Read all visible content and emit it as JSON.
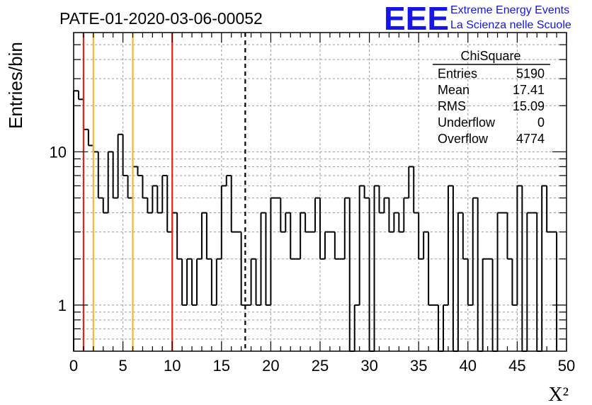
{
  "title": "PATE-01-2020-03-06-00052",
  "logo": {
    "mark": "EEE",
    "line1": "Extreme Energy Events",
    "line2": "La Scienza nelle Scuole",
    "color": "#1515e8"
  },
  "stats": {
    "header": "ChiSquare",
    "rows": [
      {
        "label": "Entries",
        "value": "5190"
      },
      {
        "label": "Mean",
        "value": "17.41"
      },
      {
        "label": "RMS",
        "value": "15.09"
      },
      {
        "label": "Underflow",
        "value": "0"
      },
      {
        "label": "Overflow",
        "value": "4774"
      }
    ]
  },
  "chart_data": {
    "type": "bar",
    "histogram": true,
    "ylog": true,
    "grid": true,
    "xlabel": "X²",
    "ylabel": "Entries/bin",
    "xlim": [
      0,
      50
    ],
    "ylim": [
      0.5,
      60
    ],
    "bin_width": 0.5,
    "x_ticks": [
      "0",
      "5",
      "10",
      "15",
      "20",
      "25",
      "30",
      "35",
      "40",
      "45",
      "50"
    ],
    "y_ticks": [
      "1",
      "10"
    ],
    "values": [
      25,
      22,
      14,
      11,
      10,
      5,
      4,
      10,
      5,
      13,
      7,
      5,
      8,
      7,
      5,
      4,
      6,
      4,
      7,
      3,
      4,
      2,
      1,
      2,
      1,
      2,
      4,
      2,
      1,
      2,
      6,
      7,
      3,
      3,
      1,
      1,
      2,
      1,
      4,
      1,
      5,
      5,
      3,
      4,
      2,
      2,
      4,
      3,
      3,
      5,
      2,
      3,
      3,
      2,
      2,
      5,
      0,
      1,
      6,
      5,
      0,
      6,
      4,
      5,
      3,
      4,
      3,
      5,
      8,
      4,
      2,
      3,
      1,
      1,
      0,
      1,
      6,
      0,
      4,
      2,
      1,
      5,
      0,
      2,
      2,
      0,
      4,
      4,
      2,
      1,
      6,
      0,
      4,
      4,
      0,
      6,
      3,
      3
    ],
    "vlines": [
      {
        "x": 1,
        "color": "#e2261f",
        "style": "solid"
      },
      {
        "x": 2,
        "color": "#f2b92e",
        "style": "solid"
      },
      {
        "x": 6,
        "color": "#f2b92e",
        "style": "solid"
      },
      {
        "x": 10,
        "color": "#e2261f",
        "style": "solid"
      },
      {
        "x": 17.41,
        "color": "#000000",
        "style": "dashed"
      }
    ]
  }
}
